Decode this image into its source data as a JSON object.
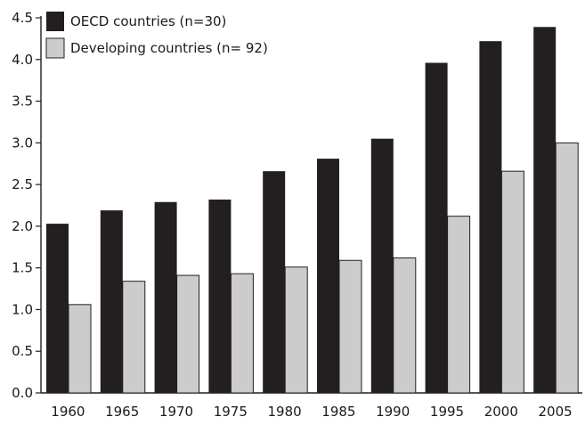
{
  "chart_data": {
    "type": "bar",
    "title": "",
    "xlabel": "",
    "ylabel": "",
    "categories": [
      "1960",
      "1965",
      "1970",
      "1975",
      "1980",
      "1985",
      "1990",
      "1995",
      "2000",
      "2005"
    ],
    "series": [
      {
        "name": "OECD countries (n=30)",
        "color": "#231f20",
        "values": [
          2.03,
          2.19,
          2.29,
          2.32,
          2.66,
          2.81,
          3.05,
          3.96,
          4.22,
          4.39
        ]
      },
      {
        "name": "Developing countries (n= 92)",
        "color": "#cccccc",
        "values": [
          1.06,
          1.34,
          1.41,
          1.43,
          1.51,
          1.59,
          1.62,
          2.12,
          2.66,
          3.0
        ]
      }
    ],
    "ylim": [
      0,
      4.5
    ],
    "yticks": [
      "0.0",
      "0.5",
      "1.0",
      "1.5",
      "2.0",
      "2.5",
      "3.0",
      "3.5",
      "4.0",
      "4.5"
    ],
    "grid": false,
    "legend_position": "top-left"
  }
}
